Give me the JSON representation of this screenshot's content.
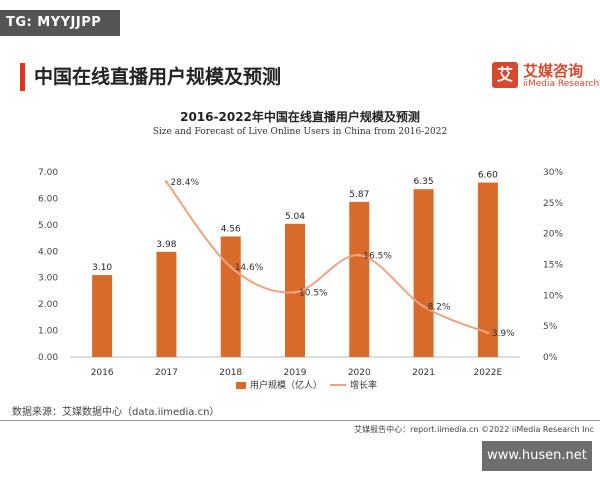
{
  "watermark_top": "TG: MYYJJPP",
  "watermark_bottom": "www.husen.net",
  "header": {
    "title": "中国在线直播用户规模及预测",
    "logo_mark": "艾",
    "logo_cn": "艾媒咨询",
    "logo_en": "iiMedia Research"
  },
  "source": "数据来源：艾媒数据中心（data.iimedia.cn）",
  "footer": "艾媒报告中心：report.iimedia.cn  ©2022  iiMedia Research  Inc",
  "colors": {
    "bar": "#d86a2a",
    "line": "#f0a383",
    "accent": "#e0321f"
  },
  "chart_data": {
    "type": "bar",
    "title": "2016-2022年中国在线直播用户规模及预测",
    "subtitle": "Size and Forecast of Live Online Users in China from 2016-2022",
    "categories": [
      "2016",
      "2017",
      "2018",
      "2019",
      "2020",
      "2021",
      "2022E"
    ],
    "series": [
      {
        "name": "用户规模（亿人）",
        "kind": "bar",
        "axis": "left",
        "values": [
          3.1,
          3.98,
          4.56,
          5.04,
          5.87,
          6.35,
          6.6
        ],
        "labels": [
          "3.10",
          "3.98",
          "4.56",
          "5.04",
          "5.87",
          "6.35",
          "6.60"
        ]
      },
      {
        "name": "增长率",
        "kind": "line",
        "axis": "right",
        "values": [
          null,
          28.4,
          14.6,
          10.5,
          16.5,
          8.2,
          3.9
        ],
        "labels": [
          "",
          "28.4%",
          "14.6%",
          "10.5%",
          "16.5%",
          "8.2%",
          "3.9%"
        ]
      }
    ],
    "y_left": {
      "range": [
        0,
        7
      ],
      "ticks": [
        "0.00",
        "1.00",
        "2.00",
        "3.00",
        "4.00",
        "5.00",
        "6.00",
        "7.00"
      ]
    },
    "y_right": {
      "range": [
        0,
        30
      ],
      "ticks": [
        "0%",
        "5%",
        "10%",
        "15%",
        "20%",
        "25%",
        "30%"
      ]
    },
    "grid": false,
    "legend": "bottom-center"
  }
}
